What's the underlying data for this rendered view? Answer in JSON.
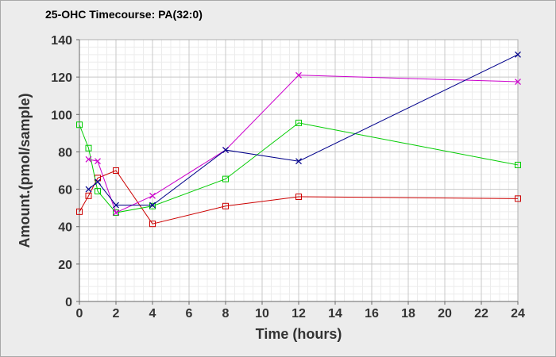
{
  "chart_data": {
    "type": "line",
    "title": "25-OHC Timecourse: PA(32:0)",
    "xlabel": "Time (hours)",
    "ylabel": "Amount.(pmol/sample)",
    "xlim": [
      0,
      24
    ],
    "ylim": [
      0,
      140
    ],
    "xticks": [
      0,
      2,
      4,
      6,
      8,
      10,
      12,
      14,
      16,
      18,
      20,
      22,
      24
    ],
    "yticks": [
      0,
      20,
      40,
      60,
      80,
      100,
      120,
      140
    ],
    "grid": true,
    "series": [
      {
        "color": "#cc0000",
        "marker": "square",
        "x": [
          0,
          0.5,
          1,
          2,
          4,
          8,
          12,
          24
        ],
        "y": [
          48,
          56.5,
          66,
          70,
          41.5,
          51,
          56,
          55
        ]
      },
      {
        "color": "#00cc00",
        "marker": "square",
        "x": [
          0,
          0.5,
          1,
          2,
          4,
          8,
          12,
          24
        ],
        "y": [
          94.5,
          82,
          59,
          47.5,
          51,
          65.5,
          95.5,
          73
        ]
      },
      {
        "color": "#cc00cc",
        "marker": "x",
        "x": [
          0.5,
          1,
          2,
          4,
          8,
          12,
          24
        ],
        "y": [
          76,
          75,
          47.5,
          56.5,
          81,
          121,
          117.5
        ]
      },
      {
        "color": "#00008b",
        "marker": "x",
        "x": [
          0.5,
          1,
          2,
          4,
          8,
          12,
          24
        ],
        "y": [
          60,
          64,
          51.5,
          51.5,
          81,
          75,
          132
        ]
      }
    ]
  }
}
